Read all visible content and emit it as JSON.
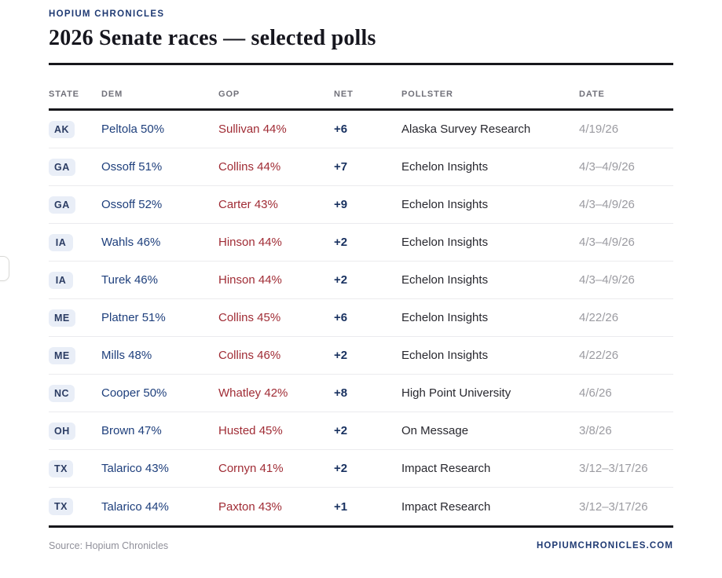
{
  "brand": "HOPIUM CHRONICLES",
  "title": "2026 Senate races — selected polls",
  "table": {
    "columns": [
      "State",
      "Dem",
      "GOP",
      "Net",
      "Pollster",
      "Date"
    ],
    "rows": [
      {
        "state": "AK",
        "dem": "Peltola 50%",
        "gop": "Sullivan 44%",
        "net": "+6",
        "pollster": "Alaska Survey Research",
        "date": "4/19/26"
      },
      {
        "state": "GA",
        "dem": "Ossoff 51%",
        "gop": "Collins 44%",
        "net": "+7",
        "pollster": "Echelon Insights",
        "date": "4/3–4/9/26"
      },
      {
        "state": "GA",
        "dem": "Ossoff 52%",
        "gop": "Carter 43%",
        "net": "+9",
        "pollster": "Echelon Insights",
        "date": "4/3–4/9/26"
      },
      {
        "state": "IA",
        "dem": "Wahls 46%",
        "gop": "Hinson 44%",
        "net": "+2",
        "pollster": "Echelon Insights",
        "date": "4/3–4/9/26"
      },
      {
        "state": "IA",
        "dem": "Turek 46%",
        "gop": "Hinson 44%",
        "net": "+2",
        "pollster": "Echelon Insights",
        "date": "4/3–4/9/26"
      },
      {
        "state": "ME",
        "dem": "Platner 51%",
        "gop": "Collins 45%",
        "net": "+6",
        "pollster": "Echelon Insights",
        "date": "4/22/26"
      },
      {
        "state": "ME",
        "dem": "Mills 48%",
        "gop": "Collins 46%",
        "net": "+2",
        "pollster": "Echelon Insights",
        "date": "4/22/26"
      },
      {
        "state": "NC",
        "dem": "Cooper 50%",
        "gop": "Whatley 42%",
        "net": "+8",
        "pollster": "High Point University",
        "date": "4/6/26"
      },
      {
        "state": "OH",
        "dem": "Brown 47%",
        "gop": "Husted 45%",
        "net": "+2",
        "pollster": "On Message",
        "date": "3/8/26"
      },
      {
        "state": "TX",
        "dem": "Talarico 43%",
        "gop": "Cornyn 41%",
        "net": "+2",
        "pollster": "Impact Research",
        "date": "3/12–3/17/26"
      },
      {
        "state": "TX",
        "dem": "Talarico 44%",
        "gop": "Paxton 43%",
        "net": "+1",
        "pollster": "Impact Research",
        "date": "3/12–3/17/26"
      }
    ]
  },
  "footer": {
    "source": "Source: Hopium Chronicles",
    "site": "HOPIUMCHRONICLES.COM"
  },
  "colors": {
    "brand_navy": "#1f3a73",
    "dem_blue": "#1e3f7c",
    "gop_red": "#a02c35",
    "net_navy": "#17305f",
    "badge_bg": "#e9eef7",
    "badge_text": "#2b3c63",
    "rule_dark": "#17171c",
    "date_gray": "#9b9ba1",
    "header_gray": "#71717a"
  }
}
